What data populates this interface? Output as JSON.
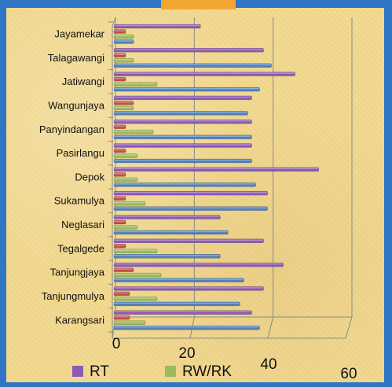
{
  "chart_data": {
    "type": "bar",
    "orientation": "horizontal",
    "categories": [
      "Jayamekar",
      "Talagawangi",
      "Jatiwangi",
      "Wangunjaya",
      "Panyindangan",
      "Pasirlangu",
      "Depok",
      "Sukamulya",
      "Neglasari",
      "Tegalgede",
      "Tanjungjaya",
      "Tanjungmulya",
      "Karangsari"
    ],
    "series": [
      {
        "name": "RT",
        "color": "#8b5ab3",
        "values": [
          22,
          38,
          46,
          35,
          35,
          35,
          52,
          39,
          27,
          38,
          43,
          38,
          35
        ]
      },
      {
        "name": "",
        "color": "#c0504d",
        "values": [
          3,
          3,
          3,
          5,
          3,
          3,
          3,
          3,
          3,
          3,
          5,
          4,
          4
        ]
      },
      {
        "name": "RW/RK",
        "color": "#9bbb59",
        "values": [
          5,
          5,
          11,
          5,
          10,
          6,
          6,
          8,
          6,
          11,
          12,
          11,
          8
        ]
      },
      {
        "name": "",
        "color": "#4f81bd",
        "values": [
          5,
          40,
          37,
          34,
          35,
          35,
          36,
          39,
          29,
          27,
          33,
          32,
          37
        ]
      }
    ],
    "x_ticks": [
      "0",
      "20",
      "40",
      "60"
    ],
    "xlim": [
      0,
      60
    ],
    "grid": true,
    "legend": "bottom",
    "title": "",
    "xlabel": "",
    "ylabel": ""
  }
}
